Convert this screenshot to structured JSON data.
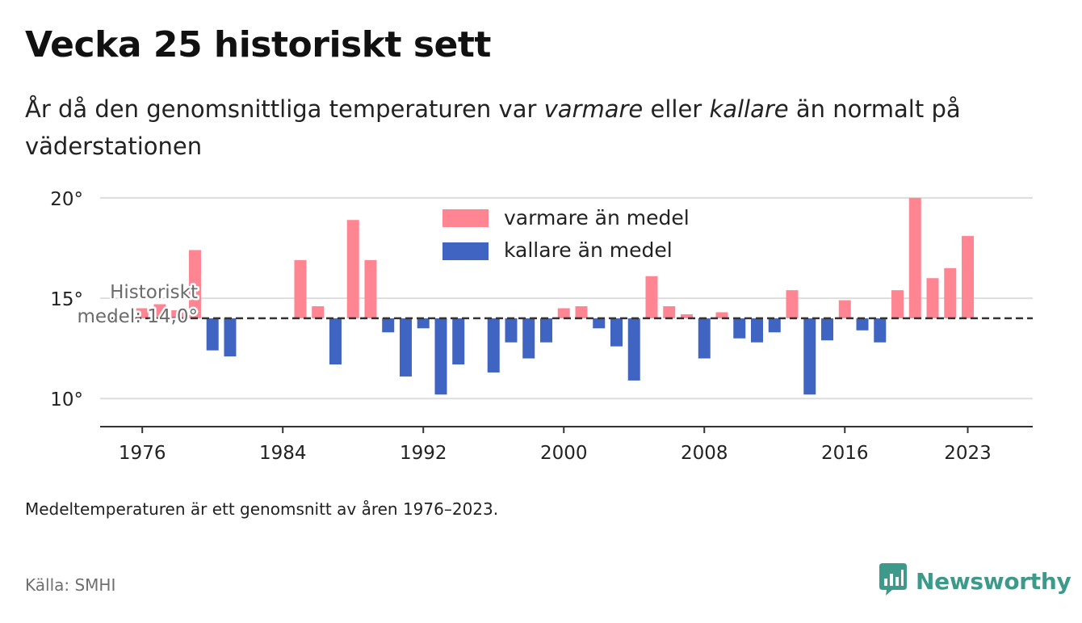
{
  "header": {
    "title": "Vecka 25 historiskt sett",
    "subtitle_parts": [
      "År då den genomsnittliga temperaturen var ",
      "varmare",
      " eller ",
      "kallare",
      " än normalt på väderstationen"
    ]
  },
  "footer": {
    "note": "Medeltemperaturen är ett genomsnitt av åren 1976–2023.",
    "source": "Källa: SMHI",
    "brand": "Newsworthy"
  },
  "colors": {
    "warmer": "#ff8593",
    "colder": "#4064c2",
    "brand": "#3d9a8b",
    "mean_line": "#333333",
    "grid": "#dddddd"
  },
  "chart_data": {
    "type": "bar",
    "baseline": 14.0,
    "baseline_label": [
      "Historiskt",
      "medel: 14,0°"
    ],
    "ylim": [
      8.6,
      20.6
    ],
    "yticks": [
      10,
      15,
      20
    ],
    "ytick_labels": [
      "10°",
      "15°",
      "20°"
    ],
    "xlim": [
      1973.6,
      2026.7
    ],
    "xticks": [
      1976,
      1984,
      1992,
      2000,
      2008,
      2016,
      2023
    ],
    "xtick_labels": [
      "1976",
      "1984",
      "1992",
      "2000",
      "2008",
      "2016",
      "2023"
    ],
    "legend": {
      "position": "top-center",
      "warmer": "varmare än medel",
      "colder": "kallare än medel"
    },
    "series": [
      {
        "name": "varmare än medel",
        "points": [
          [
            1976,
            14.5
          ],
          [
            1977,
            14.7
          ],
          [
            1978,
            14.4
          ],
          [
            1979,
            17.4
          ],
          [
            1985,
            16.9
          ],
          [
            1986,
            14.6
          ],
          [
            1988,
            18.9
          ],
          [
            1989,
            16.9
          ],
          [
            2000,
            14.5
          ],
          [
            2001,
            14.6
          ],
          [
            2005,
            16.1
          ],
          [
            2006,
            14.6
          ],
          [
            2007,
            14.2
          ],
          [
            2009,
            14.3
          ],
          [
            2013,
            15.4
          ],
          [
            2016,
            14.9
          ],
          [
            2019,
            15.4
          ],
          [
            2020,
            20.0
          ],
          [
            2021,
            16.0
          ],
          [
            2022,
            16.5
          ],
          [
            2023,
            18.1
          ]
        ]
      },
      {
        "name": "kallare än medel",
        "points": [
          [
            1980,
            12.4
          ],
          [
            1981,
            12.1
          ],
          [
            1987,
            11.7
          ],
          [
            1990,
            13.3
          ],
          [
            1991,
            11.1
          ],
          [
            1992,
            13.5
          ],
          [
            1993,
            10.2
          ],
          [
            1994,
            11.7
          ],
          [
            1996,
            11.3
          ],
          [
            1997,
            12.8
          ],
          [
            1998,
            12.0
          ],
          [
            1999,
            12.8
          ],
          [
            2002,
            13.5
          ],
          [
            2003,
            12.6
          ],
          [
            2004,
            10.9
          ],
          [
            2008,
            12.0
          ],
          [
            2010,
            13.0
          ],
          [
            2011,
            12.8
          ],
          [
            2012,
            13.3
          ],
          [
            2014,
            10.2
          ],
          [
            2015,
            12.9
          ],
          [
            2017,
            13.4
          ],
          [
            2018,
            12.8
          ]
        ]
      }
    ]
  }
}
